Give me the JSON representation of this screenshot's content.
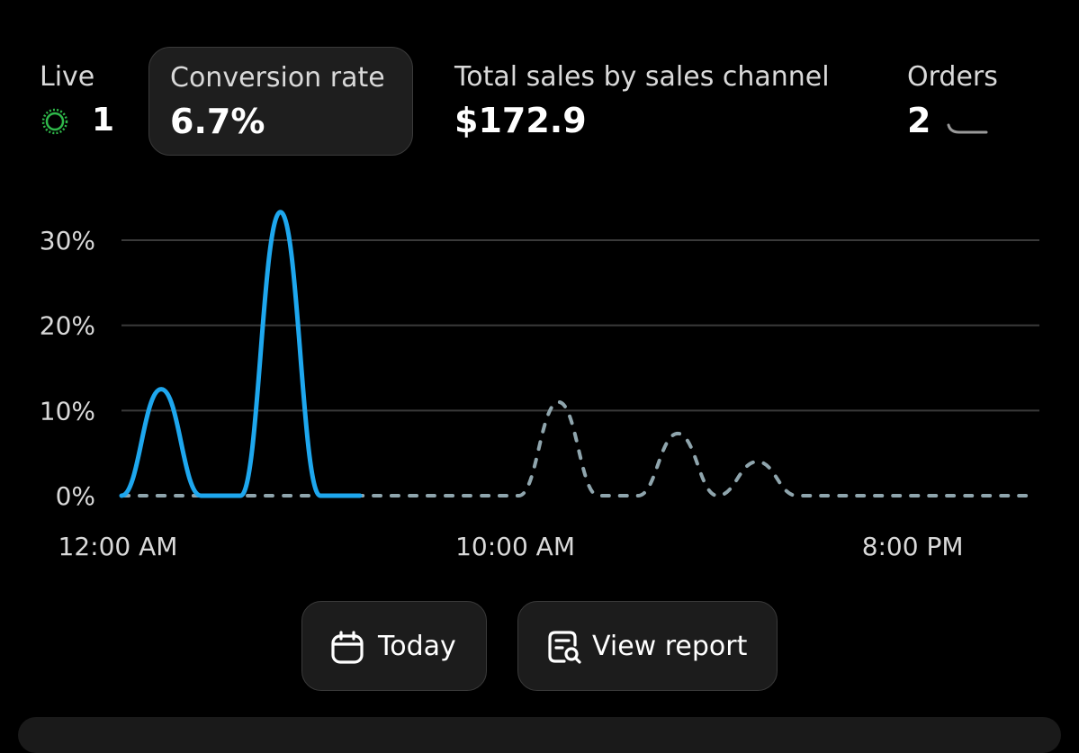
{
  "metrics": {
    "live": {
      "label": "Live",
      "value": "1",
      "indicator_color": "#2fb84a"
    },
    "conversion_rate": {
      "label": "Conversion rate",
      "value": "6.7%",
      "selected": true
    },
    "total_sales": {
      "label": "Total sales by sales channel",
      "value": "$172.9"
    },
    "orders": {
      "label": "Orders",
      "value": "2",
      "sparkline_icon": "sparkline-icon"
    }
  },
  "buttons": {
    "today": {
      "label": "Today",
      "icon": "calendar-icon"
    },
    "view_report": {
      "label": "View report",
      "icon": "report-search-icon"
    }
  },
  "colors": {
    "current_series": "#1ea7ee",
    "comparison_series": "#8fa5ad",
    "gridline": "#3a3a3a"
  },
  "chart_data": {
    "type": "line",
    "title": "",
    "xlabel": "",
    "ylabel": "",
    "x_tick_labels": [
      "12:00 AM",
      "10:00 AM",
      "8:00 PM"
    ],
    "y_tick_labels": [
      "0%",
      "10%",
      "20%",
      "30%"
    ],
    "y_ticks": [
      0,
      10,
      20,
      30
    ],
    "ylim": [
      0,
      30
    ],
    "x_hours": [
      0,
      1,
      2,
      3,
      4,
      5,
      6,
      7,
      8,
      9,
      10,
      11,
      12,
      13,
      14,
      15,
      16,
      17,
      18,
      19,
      20,
      21,
      22,
      23
    ],
    "grid": true,
    "series": [
      {
        "style": "solid",
        "color": "#1ea7ee",
        "values": [
          0,
          12.5,
          0,
          0,
          33.3,
          0,
          0
        ]
      },
      {
        "style": "dashed",
        "color": "#8fa5ad",
        "values": [
          0,
          0,
          0,
          0,
          0,
          0,
          0,
          0,
          0,
          0,
          0,
          11,
          0,
          0,
          7.3,
          0,
          4,
          0,
          0,
          0,
          0,
          0,
          0,
          0
        ]
      }
    ]
  }
}
